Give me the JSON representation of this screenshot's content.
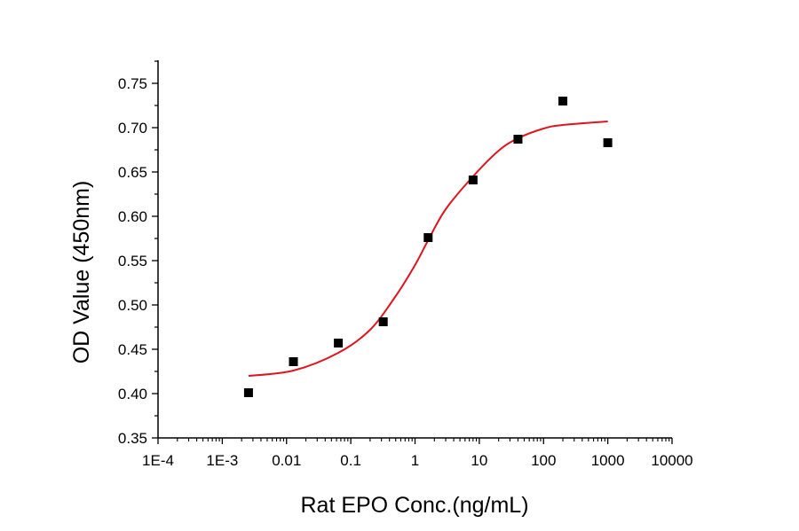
{
  "chart_data": {
    "type": "scatter",
    "xlabel": "Rat EPO Conc.(ng/mL)",
    "ylabel": "OD Value (450nm)",
    "xscale": "log",
    "xlim": [
      0.0001,
      10000
    ],
    "ylim": [
      0.35,
      0.75
    ],
    "x_ticks": [
      0.0001,
      0.001,
      0.01,
      0.1,
      1,
      10,
      100,
      1000,
      10000
    ],
    "x_tick_labels": [
      "1E-4",
      "1E-3",
      "0.01",
      "0.1",
      "1",
      "10",
      "100",
      "1000",
      "10000"
    ],
    "y_ticks": [
      0.35,
      0.4,
      0.45,
      0.5,
      0.55,
      0.6,
      0.65,
      0.7,
      0.75
    ],
    "y_tick_labels": [
      "0.35",
      "0.40",
      "0.45",
      "0.50",
      "0.55",
      "0.60",
      "0.65",
      "0.70",
      "0.75"
    ],
    "grid": false,
    "points": {
      "marker": "square",
      "color": "#000000",
      "x": [
        0.00256,
        0.0128,
        0.064,
        0.32,
        1.6,
        8,
        40,
        200,
        1000
      ],
      "y": [
        0.401,
        0.436,
        0.457,
        0.481,
        0.576,
        0.641,
        0.687,
        0.73,
        0.683
      ]
    },
    "fit_curve": {
      "color": "#e0141e",
      "x": [
        0.00256,
        0.0128,
        0.064,
        0.2,
        0.5,
        1,
        1.6,
        3,
        8,
        20,
        40,
        100,
        200,
        1000
      ],
      "y": [
        0.42,
        0.426,
        0.446,
        0.472,
        0.51,
        0.545,
        0.573,
        0.608,
        0.645,
        0.674,
        0.688,
        0.699,
        0.703,
        0.707
      ]
    }
  }
}
